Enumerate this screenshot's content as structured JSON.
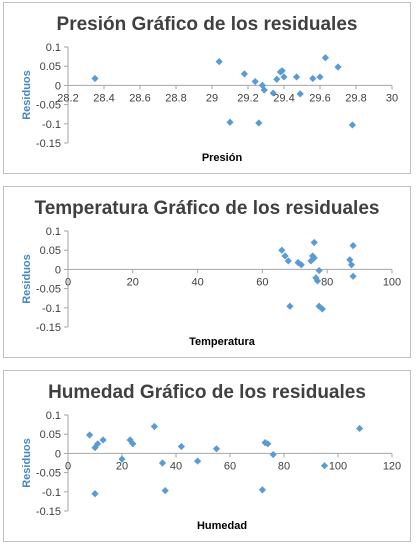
{
  "chart_data": [
    {
      "type": "scatter",
      "title": "Presión Gráfico de los residuales",
      "xlabel": "Presión",
      "ylabel": "Residuos",
      "xlim": [
        28.2,
        30
      ],
      "ylim": [
        -0.15,
        0.1
      ],
      "xticks": [
        "28.2",
        "28.4",
        "28.6",
        "28.8",
        "29",
        "29.2",
        "29.4",
        "29.6",
        "29.8",
        "30"
      ],
      "yticks": [
        "0.1",
        "0.05",
        "0",
        "-0.05",
        "-0.1",
        "-0.15"
      ],
      "grid": false,
      "color": "#5b9bd5",
      "points": [
        [
          28.35,
          0.018
        ],
        [
          29.04,
          0.062
        ],
        [
          29.1,
          -0.096
        ],
        [
          29.18,
          0.03
        ],
        [
          29.24,
          0.01
        ],
        [
          29.26,
          -0.098
        ],
        [
          29.28,
          0.0
        ],
        [
          29.29,
          -0.012
        ],
        [
          29.34,
          -0.02
        ],
        [
          29.36,
          0.016
        ],
        [
          29.38,
          0.035
        ],
        [
          29.39,
          0.038
        ],
        [
          29.4,
          0.022
        ],
        [
          29.47,
          0.022
        ],
        [
          29.49,
          -0.022
        ],
        [
          29.56,
          0.018
        ],
        [
          29.6,
          0.022
        ],
        [
          29.63,
          0.072
        ],
        [
          29.7,
          0.048
        ],
        [
          29.78,
          -0.103
        ]
      ]
    },
    {
      "type": "scatter",
      "title": "Temperatura Gráfico de los residuales",
      "xlabel": "Temperatura",
      "ylabel": "Residuos",
      "xlim": [
        0,
        100
      ],
      "ylim": [
        -0.15,
        0.1
      ],
      "xticks": [
        "0",
        "20",
        "40",
        "60",
        "80",
        "100"
      ],
      "yticks": [
        "0.1",
        "0.05",
        "0",
        "-0.05",
        "-0.1",
        "-0.15"
      ],
      "grid": false,
      "color": "#5b9bd5",
      "points": [
        [
          66,
          0.05
        ],
        [
          67,
          0.035
        ],
        [
          68,
          0.022
        ],
        [
          68.5,
          -0.096
        ],
        [
          71,
          0.018
        ],
        [
          72,
          0.012
        ],
        [
          75,
          0.022
        ],
        [
          75.5,
          0.035
        ],
        [
          76,
          0.07
        ],
        [
          76,
          0.03
        ],
        [
          76.5,
          -0.022
        ],
        [
          77,
          -0.03
        ],
        [
          77.5,
          -0.003
        ],
        [
          77.5,
          -0.096
        ],
        [
          78.5,
          -0.103
        ],
        [
          87,
          0.025
        ],
        [
          87.5,
          0.012
        ],
        [
          88,
          0.062
        ],
        [
          88,
          -0.018
        ]
      ]
    },
    {
      "type": "scatter",
      "title": "Humedad Gráfico de los residuales",
      "xlabel": "Humedad",
      "ylabel": "Residuos",
      "xlim": [
        0,
        120
      ],
      "ylim": [
        -0.15,
        0.1
      ],
      "xticks": [
        "0",
        "20",
        "40",
        "60",
        "80",
        "100",
        "120"
      ],
      "yticks": [
        "0.1",
        "0.05",
        "0",
        "-0.05",
        "-0.1",
        "-0.15"
      ],
      "grid": false,
      "color": "#5b9bd5",
      "points": [
        [
          8,
          0.048
        ],
        [
          10,
          0.015
        ],
        [
          10,
          -0.105
        ],
        [
          11,
          0.025
        ],
        [
          13,
          0.035
        ],
        [
          20,
          -0.015
        ],
        [
          23,
          0.035
        ],
        [
          24,
          0.025
        ],
        [
          32,
          0.07
        ],
        [
          35,
          -0.025
        ],
        [
          36,
          -0.097
        ],
        [
          42,
          0.018
        ],
        [
          48,
          -0.02
        ],
        [
          55,
          0.012
        ],
        [
          72,
          -0.095
        ],
        [
          73,
          0.028
        ],
        [
          74,
          0.025
        ],
        [
          76,
          -0.003
        ],
        [
          95,
          -0.032
        ],
        [
          108,
          0.065
        ]
      ]
    }
  ]
}
